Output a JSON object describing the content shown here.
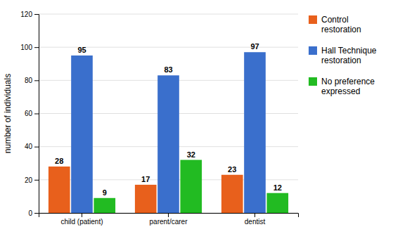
{
  "chart_data": {
    "type": "bar",
    "categories": [
      "child (patient)",
      "parent/carer",
      "dentist"
    ],
    "series": [
      {
        "name": "Control\nrestoration",
        "color": "#E8601C",
        "values": [
          28,
          17,
          23
        ]
      },
      {
        "name": "Hall Technique\nrestoration",
        "color": "#3A6FCC",
        "values": [
          95,
          83,
          97
        ]
      },
      {
        "name": "No preference\nexpressed",
        "color": "#22BB22",
        "values": [
          9,
          32,
          12
        ]
      }
    ],
    "ylabel": "number of individuals",
    "ylim": [
      0,
      120
    ],
    "yticks": [
      0,
      20,
      40,
      60,
      80,
      100,
      120
    ],
    "grid": true,
    "data_labels": true,
    "legend": "right"
  }
}
